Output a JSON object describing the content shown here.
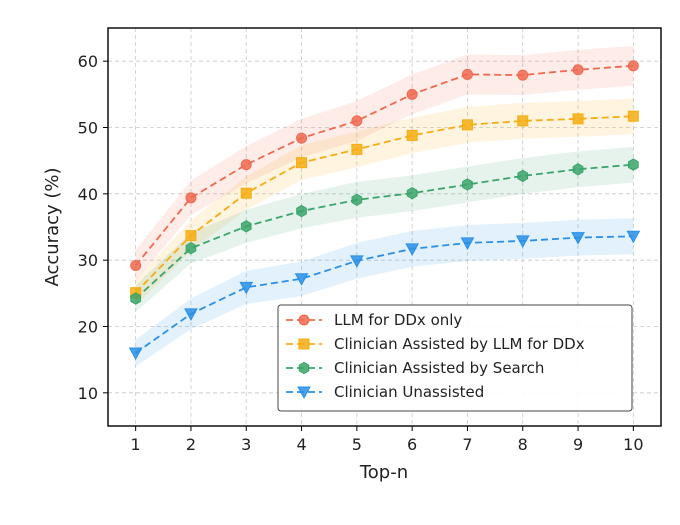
{
  "chart_data": {
    "type": "line",
    "xlabel": "Top-n",
    "ylabel": "Accuracy (%)",
    "x": [
      1,
      2,
      3,
      4,
      5,
      6,
      7,
      8,
      9,
      10
    ],
    "xlim": [
      0.5,
      10.5
    ],
    "ylim": [
      5,
      65
    ],
    "yticks": [
      10,
      20,
      30,
      40,
      50,
      60
    ],
    "grid": true,
    "legend_position": "bottom-right",
    "series": [
      {
        "name": "LLM for DDx only",
        "color": "#ef6a50",
        "marker": "circle",
        "values": [
          29.2,
          39.4,
          44.4,
          48.4,
          51.0,
          55.0,
          58.0,
          57.9,
          58.7,
          59.3
        ],
        "band": [
          2.3,
          2.6,
          2.8,
          2.9,
          3.0,
          3.0,
          3.0,
          3.0,
          3.0,
          3.0
        ]
      },
      {
        "name": "Clinician Assisted by LLM for DDx",
        "color": "#f6ad12",
        "marker": "square",
        "values": [
          25.1,
          33.7,
          40.1,
          44.7,
          46.7,
          48.8,
          50.4,
          51.0,
          51.3,
          51.7
        ],
        "band": [
          2.0,
          2.3,
          2.5,
          2.6,
          2.7,
          2.7,
          2.7,
          2.7,
          2.7,
          2.7
        ]
      },
      {
        "name": "Clinician Assisted by Search",
        "color": "#3aa46a",
        "marker": "hexagon",
        "values": [
          24.2,
          31.8,
          35.1,
          37.4,
          39.1,
          40.1,
          41.4,
          42.7,
          43.7,
          44.4
        ],
        "band": [
          2.0,
          2.3,
          2.5,
          2.6,
          2.7,
          2.7,
          2.7,
          2.7,
          2.7,
          2.7
        ]
      },
      {
        "name": "Clinician Unassisted",
        "color": "#2990e6",
        "marker": "triangle-down",
        "values": [
          16.0,
          21.9,
          25.9,
          27.2,
          29.9,
          31.7,
          32.6,
          32.9,
          33.4,
          33.6
        ],
        "band": [
          2.0,
          2.3,
          2.5,
          2.6,
          2.7,
          2.7,
          2.7,
          2.7,
          2.7,
          2.7
        ]
      }
    ]
  }
}
